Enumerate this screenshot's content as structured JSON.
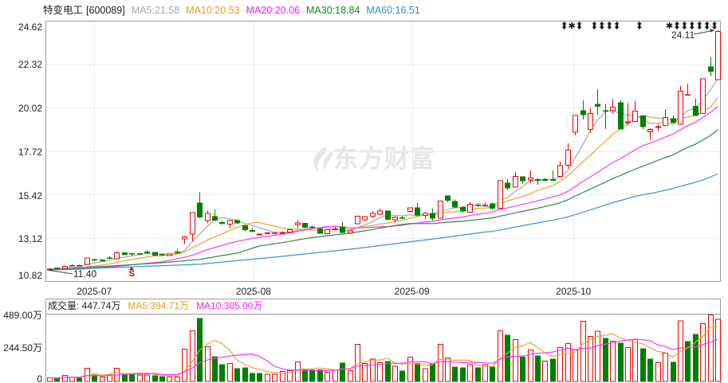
{
  "header": {
    "stock_name": "特变电工",
    "stock_code": "[600089]",
    "ma_legend": [
      {
        "label": "MA5:21.58",
        "color": "#a8a8a8"
      },
      {
        "label": "MA10:20.53",
        "color": "#e99c1c"
      },
      {
        "label": "MA20:20.06",
        "color": "#ff14ff"
      },
      {
        "label": "MA30:18.84",
        "color": "#11881e"
      },
      {
        "label": "MA60:16.51",
        "color": "#2f8ae0"
      }
    ]
  },
  "price_axis": {
    "labels": [
      "24.62",
      "22.32",
      "20.02",
      "17.72",
      "15.42",
      "13.12",
      "10.82"
    ]
  },
  "time_axis": {
    "labels": [
      "2025-07",
      "2025-08",
      "2025-09",
      "2025-10"
    ]
  },
  "annotations": {
    "low_label": "11.40",
    "high_label": "24.11",
    "signal_label": "S"
  },
  "watermark": {
    "text": "东方财富",
    "icon": "eastmoney-logo-icon"
  },
  "volume_panel": {
    "title": "成交量: 447.74万",
    "ma5": "MA5:394.71万",
    "ma10": "MA10:305.00万",
    "ma5_color": "#e99c1c",
    "ma10_color": "#ff14ff",
    "axis_labels": [
      "489.00万",
      "244.50万",
      "0"
    ]
  },
  "colors": {
    "up": "#f00000",
    "down": "#008000",
    "grid": "#ececec",
    "border": "#9a9a9a",
    "annotation": "#444444"
  },
  "chart_data": [
    {
      "type": "candlestick",
      "title": "特变电工 [600089]",
      "xlabel": "",
      "ylabel": "",
      "ylim": [
        10.82,
        24.62
      ],
      "y_ticks": [
        "24.62",
        "22.32",
        "20.02",
        "17.72",
        "15.42",
        "13.12",
        "10.82"
      ],
      "x_ticks": [
        {
          "label": "2025-07",
          "index": 6
        },
        {
          "label": "2025-08",
          "index": 27.2
        },
        {
          "label": "2025-09",
          "index": 48.3
        },
        {
          "label": "2025-10",
          "index": 69.8
        }
      ],
      "grid": true,
      "ohlc_order": [
        "open",
        "high",
        "low",
        "close"
      ],
      "ohlc": [
        [
          11.43,
          11.5,
          11.4,
          11.45
        ],
        [
          11.51,
          11.53,
          11.46,
          11.49
        ],
        [
          11.49,
          11.64,
          11.47,
          11.61
        ],
        [
          11.63,
          11.7,
          11.6,
          11.65
        ],
        [
          11.64,
          11.69,
          11.6,
          11.65
        ],
        [
          11.7,
          12.07,
          11.68,
          12.05
        ],
        [
          11.97,
          12.0,
          11.88,
          11.93
        ],
        [
          11.93,
          11.98,
          11.86,
          11.91
        ],
        [
          12.05,
          12.15,
          11.98,
          12.03
        ],
        [
          12.0,
          12.4,
          11.98,
          12.31
        ],
        [
          12.31,
          12.34,
          12.2,
          12.23
        ],
        [
          12.28,
          12.32,
          12.18,
          12.26
        ],
        [
          12.28,
          12.32,
          12.2,
          12.26
        ],
        [
          12.35,
          12.46,
          12.28,
          12.33
        ],
        [
          12.33,
          12.35,
          12.16,
          12.2
        ],
        [
          12.24,
          12.28,
          12.15,
          12.22
        ],
        [
          12.17,
          12.28,
          12.15,
          12.26
        ],
        [
          12.35,
          12.5,
          12.25,
          12.33
        ],
        [
          13.06,
          13.2,
          12.78,
          13.17
        ],
        [
          13.3,
          14.45,
          12.92,
          14.44
        ],
        [
          14.96,
          15.52,
          14.16,
          14.21
        ],
        [
          14.02,
          14.56,
          13.87,
          14.4
        ],
        [
          14.23,
          14.63,
          14.0,
          14.04
        ],
        [
          13.92,
          14.0,
          13.8,
          13.88
        ],
        [
          13.84,
          14.05,
          13.62,
          14.02
        ],
        [
          14.03,
          14.08,
          13.85,
          13.9
        ],
        [
          13.76,
          13.78,
          13.45,
          13.55
        ],
        [
          13.5,
          13.62,
          13.4,
          13.48
        ],
        [
          13.27,
          13.33,
          13.25,
          13.31
        ],
        [
          13.34,
          13.42,
          13.32,
          13.37
        ],
        [
          13.35,
          13.4,
          13.32,
          13.38
        ],
        [
          13.36,
          13.45,
          13.3,
          13.39
        ],
        [
          13.41,
          13.56,
          13.39,
          13.55
        ],
        [
          13.82,
          14.04,
          13.62,
          13.9
        ],
        [
          13.87,
          13.9,
          13.62,
          13.66
        ],
        [
          13.7,
          13.76,
          13.62,
          13.68
        ],
        [
          13.59,
          13.62,
          13.3,
          13.36
        ],
        [
          13.34,
          13.56,
          13.32,
          13.55
        ],
        [
          13.57,
          13.68,
          13.5,
          13.59
        ],
        [
          13.69,
          13.97,
          13.38,
          13.4
        ],
        [
          13.38,
          13.5,
          13.35,
          13.48
        ],
        [
          13.86,
          14.28,
          13.84,
          14.25
        ],
        [
          14.07,
          14.26,
          14.0,
          14.23
        ],
        [
          14.25,
          14.54,
          14.2,
          14.41
        ],
        [
          14.37,
          14.67,
          14.3,
          14.54
        ],
        [
          14.54,
          14.56,
          14.07,
          14.09
        ],
        [
          14.07,
          14.25,
          13.93,
          14.2
        ],
        [
          14.18,
          14.25,
          14.1,
          14.16
        ],
        [
          14.51,
          14.72,
          14.48,
          14.7
        ],
        [
          14.7,
          14.96,
          14.25,
          14.32
        ],
        [
          14.3,
          14.49,
          14.11,
          14.4
        ],
        [
          14.4,
          14.67,
          14.02,
          14.16
        ],
        [
          14.16,
          15.08,
          14.14,
          15.07
        ],
        [
          15.34,
          15.36,
          15.0,
          15.1
        ],
        [
          15.03,
          15.14,
          14.7,
          14.75
        ],
        [
          14.72,
          14.78,
          14.44,
          14.54
        ],
        [
          14.46,
          15.0,
          14.44,
          14.89
        ],
        [
          14.86,
          14.95,
          14.75,
          14.83
        ],
        [
          14.83,
          14.98,
          14.8,
          14.86
        ],
        [
          14.92,
          14.98,
          14.6,
          14.68
        ],
        [
          14.68,
          16.14,
          14.65,
          16.13
        ],
        [
          16.01,
          16.22,
          15.66,
          15.76
        ],
        [
          15.8,
          16.6,
          15.78,
          16.36
        ],
        [
          16.34,
          16.38,
          15.98,
          16.13
        ],
        [
          16.19,
          16.69,
          16.01,
          16.29
        ],
        [
          16.2,
          16.28,
          15.93,
          16.18
        ],
        [
          16.2,
          16.28,
          16.1,
          16.18
        ],
        [
          16.2,
          16.69,
          16.15,
          16.19
        ],
        [
          16.36,
          17.14,
          16.3,
          16.93
        ],
        [
          16.97,
          18.12,
          16.79,
          17.77
        ],
        [
          18.71,
          19.62,
          18.54,
          19.59
        ],
        [
          19.85,
          20.4,
          19.39,
          19.64
        ],
        [
          18.87,
          19.98,
          18.66,
          19.71
        ],
        [
          20.19,
          20.99,
          19.63,
          20.08
        ],
        [
          19.86,
          20.19,
          18.89,
          19.83
        ],
        [
          19.85,
          20.49,
          19.71,
          20.05
        ],
        [
          20.27,
          20.4,
          18.87,
          18.89
        ],
        [
          19.21,
          20.26,
          19.08,
          19.27
        ],
        [
          19.29,
          20.37,
          19.25,
          19.84
        ],
        [
          19.57,
          19.62,
          18.89,
          19.01
        ],
        [
          18.74,
          18.92,
          18.3,
          18.85
        ],
        [
          18.97,
          19.14,
          18.79,
          19.0
        ],
        [
          19.06,
          19.91,
          19.02,
          19.49
        ],
        [
          19.42,
          19.6,
          19.18,
          19.21
        ],
        [
          19.13,
          21.15,
          19.1,
          20.89
        ],
        [
          20.68,
          21.29,
          20.66,
          20.7
        ],
        [
          20.09,
          20.51,
          19.58,
          19.6
        ],
        [
          19.7,
          21.55,
          19.68,
          21.53
        ],
        [
          22.17,
          22.69,
          21.68,
          21.95
        ],
        [
          21.5,
          24.11,
          21.48,
          24.05
        ]
      ],
      "moving_averages": [
        {
          "name": "MA5",
          "period": 5,
          "last": 21.58,
          "color": "#a9a9a9",
          "lead": [
            [
              0,
              11.46
            ],
            [
              3,
              11.55
            ]
          ]
        },
        {
          "name": "MA10",
          "period": 10,
          "last": 20.53,
          "color": "#e8a535",
          "lead": [
            [
              0,
              11.41
            ],
            [
              4,
              11.52
            ],
            [
              8,
              11.72
            ]
          ]
        },
        {
          "name": "MA20",
          "period": 20,
          "last": 20.06,
          "color": "#ff33ff",
          "lead": [
            [
              0,
              11.41
            ],
            [
              4,
              11.45
            ],
            [
              9,
              11.6
            ],
            [
              15,
              11.84
            ],
            [
              18,
              12.08
            ]
          ]
        },
        {
          "name": "MA30",
          "period": 30,
          "last": 18.84,
          "color": "#2e8b46",
          "lead": [
            [
              0,
              11.41
            ],
            [
              15,
              11.79
            ],
            [
              20,
              11.97
            ],
            [
              25,
              12.3
            ],
            [
              28,
              12.68
            ]
          ]
        },
        {
          "name": "MA60",
          "period": 60,
          "last": 16.51,
          "color": "#3a90dc",
          "lead": [
            [
              0,
              11.41
            ],
            [
              9,
              11.54
            ],
            [
              20,
              11.71
            ],
            [
              31,
              12.13
            ],
            [
              41,
              12.55
            ],
            [
              52,
              13.1
            ],
            [
              58,
              13.42
            ]
          ]
        }
      ],
      "annotations": [
        {
          "kind": "period-low",
          "text": "11.40",
          "index": 0,
          "value": 11.4
        },
        {
          "kind": "period-high",
          "text": "24.11",
          "index": 89,
          "value": 24.11
        },
        {
          "kind": "signal",
          "text": "S",
          "index": 11
        }
      ],
      "markers": [
        {
          "index": 69,
          "icon": "arrow"
        },
        {
          "index": 70,
          "icon": "star"
        },
        {
          "index": 71,
          "icon": "arrow"
        },
        {
          "index": 73,
          "icon": "arrow"
        },
        {
          "index": 74,
          "icon": "arrow"
        },
        {
          "index": 75,
          "icon": "arrow"
        },
        {
          "index": 76,
          "icon": "arrow"
        },
        {
          "index": 79,
          "icon": "arrow"
        },
        {
          "index": 83,
          "icon": "star"
        },
        {
          "index": 84,
          "icon": "arrow"
        },
        {
          "index": 85,
          "icon": "arrow"
        },
        {
          "index": 86,
          "icon": "arrow"
        },
        {
          "index": 87,
          "icon": "arrow"
        },
        {
          "index": 88,
          "icon": "arrow"
        },
        {
          "index": 89,
          "icon": "arrow"
        }
      ]
    },
    {
      "type": "bar",
      "title": "成交量",
      "unit": "万",
      "ylim": [
        0,
        489
      ],
      "y_ticks": [
        "489.00万",
        "244.50万",
        "0"
      ],
      "values": [
        27,
        21,
        44,
        31,
        23,
        96,
        52,
        31,
        46,
        96,
        56,
        58,
        46,
        46,
        40,
        35,
        33,
        33,
        234,
        366,
        454,
        251,
        178,
        121,
        130,
        92,
        98,
        58,
        58,
        52,
        52,
        73,
        79,
        142,
        90,
        84,
        84,
        67,
        84,
        132,
        79,
        267,
        130,
        161,
        136,
        144,
        109,
        75,
        176,
        130,
        92,
        130,
        267,
        171,
        104,
        98,
        121,
        98,
        121,
        104,
        366,
        334,
        303,
        176,
        228,
        184,
        148,
        161,
        245,
        274,
        228,
        435,
        326,
        361,
        312,
        291,
        276,
        245,
        303,
        236,
        161,
        136,
        205,
        138,
        437,
        288,
        339,
        418,
        480.8,
        447.74
      ],
      "directions": [
        "r",
        "g",
        "r",
        "r",
        "g",
        "r",
        "g",
        "r",
        "r",
        "r",
        "g",
        "g",
        "r",
        "r",
        "g",
        "g",
        "r",
        "r",
        "r",
        "r",
        "g",
        "r",
        "g",
        "g",
        "r",
        "g",
        "g",
        "g",
        "g",
        "r",
        "r",
        "r",
        "r",
        "r",
        "g",
        "g",
        "g",
        "r",
        "r",
        "g",
        "r",
        "r",
        "r",
        "r",
        "r",
        "g",
        "r",
        "g",
        "r",
        "g",
        "r",
        "g",
        "r",
        "r",
        "g",
        "g",
        "r",
        "g",
        "r",
        "g",
        "r",
        "g",
        "r",
        "g",
        "r",
        "g",
        "r",
        "g",
        "r",
        "r",
        "r",
        "r",
        "r",
        "r",
        "g",
        "r",
        "g",
        "r",
        "r",
        "g",
        "g",
        "r",
        "r",
        "g",
        "r",
        "g",
        "g",
        "r",
        "r",
        "r"
      ],
      "moving_averages": [
        {
          "name": "MA5",
          "period": 5,
          "last": 394.71,
          "color": "#e8a535"
        },
        {
          "name": "MA10",
          "period": 10,
          "last": 305.0,
          "color": "#ff33ff"
        }
      ]
    }
  ]
}
